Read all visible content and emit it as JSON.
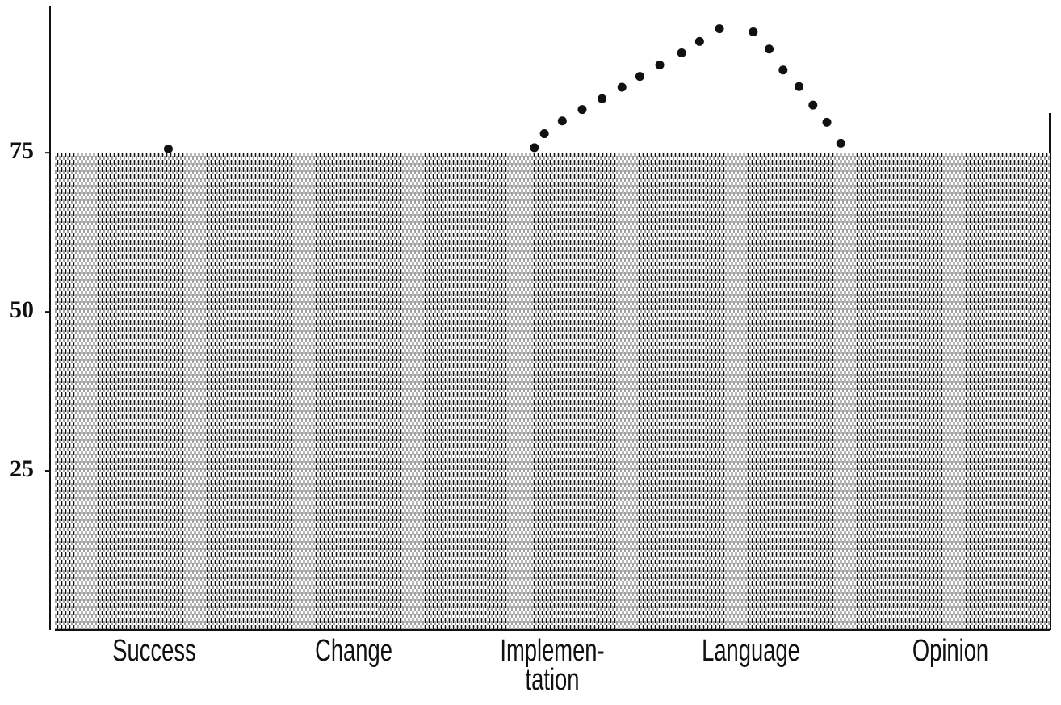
{
  "chart_data": [
    {
      "type": "bar",
      "categories": [
        "Success",
        "Change",
        "Implemen-\ntation",
        "Language",
        "Opinion"
      ],
      "values": [
        75,
        75,
        75,
        75,
        75
      ],
      "color": "#1a1a1a",
      "ylim": [
        0,
        98
      ],
      "yticks": [
        25,
        50,
        75
      ]
    },
    {
      "type": "scatter",
      "x": [
        0.07,
        1.91,
        1.96,
        2.05,
        2.15,
        2.25,
        2.35,
        2.44,
        2.54,
        2.65,
        2.74,
        2.84,
        3.01,
        3.09,
        3.16,
        3.24,
        3.31,
        3.38,
        3.45
      ],
      "y": [
        75.6,
        75.8,
        78,
        80,
        81.8,
        83.5,
        85.3,
        87,
        88.8,
        90.7,
        92.5,
        94.5,
        94,
        91.3,
        88,
        85.4,
        82.5,
        79.8,
        76.5
      ],
      "color": "#111111",
      "xlim": [
        -0.5,
        4.5
      ],
      "ylim": [
        0,
        98
      ]
    }
  ]
}
